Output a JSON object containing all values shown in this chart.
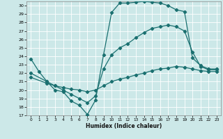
{
  "xlabel": "Humidex (Indice chaleur)",
  "bg_color": "#cce8e8",
  "grid_color": "#ffffff",
  "line_color": "#1a7070",
  "xlim": [
    -0.5,
    23.5
  ],
  "ylim": [
    17,
    30.5
  ],
  "xticks": [
    0,
    1,
    2,
    3,
    4,
    5,
    6,
    7,
    8,
    9,
    10,
    11,
    12,
    13,
    14,
    15,
    16,
    17,
    18,
    19,
    20,
    21,
    22,
    23
  ],
  "yticks": [
    17,
    18,
    19,
    20,
    21,
    22,
    23,
    24,
    25,
    26,
    27,
    28,
    29,
    30
  ],
  "line1_x": [
    0,
    1,
    2,
    3,
    4,
    5,
    6,
    7,
    8,
    9,
    10,
    11,
    12,
    13,
    14,
    15,
    16,
    17,
    18,
    19,
    20,
    21,
    22,
    23
  ],
  "line1_y": [
    23.7,
    22.2,
    21.0,
    20.0,
    19.8,
    18.7,
    18.2,
    17.1,
    18.8,
    24.2,
    29.2,
    30.3,
    30.3,
    30.4,
    30.5,
    30.4,
    30.3,
    30.0,
    29.5,
    29.3,
    23.8,
    22.9,
    22.5,
    22.5
  ],
  "line2_x": [
    0,
    2,
    3,
    4,
    5,
    6,
    7,
    8,
    9,
    10,
    11,
    12,
    13,
    14,
    15,
    16,
    17,
    18,
    19,
    20,
    21,
    22,
    23
  ],
  "line2_y": [
    22.0,
    21.0,
    20.5,
    20.0,
    19.5,
    19.0,
    18.5,
    19.3,
    22.5,
    24.2,
    25.0,
    25.5,
    26.2,
    26.8,
    27.3,
    27.5,
    27.7,
    27.5,
    27.0,
    24.5,
    22.8,
    22.4,
    22.4
  ],
  "line3_x": [
    0,
    2,
    3,
    4,
    5,
    6,
    7,
    8,
    9,
    10,
    11,
    12,
    13,
    14,
    15,
    16,
    17,
    18,
    19,
    20,
    21,
    22,
    23
  ],
  "line3_y": [
    21.5,
    20.8,
    20.5,
    20.3,
    20.1,
    20.0,
    19.8,
    20.0,
    20.5,
    21.0,
    21.3,
    21.5,
    21.8,
    22.0,
    22.3,
    22.5,
    22.6,
    22.8,
    22.7,
    22.5,
    22.3,
    22.2,
    22.2
  ]
}
